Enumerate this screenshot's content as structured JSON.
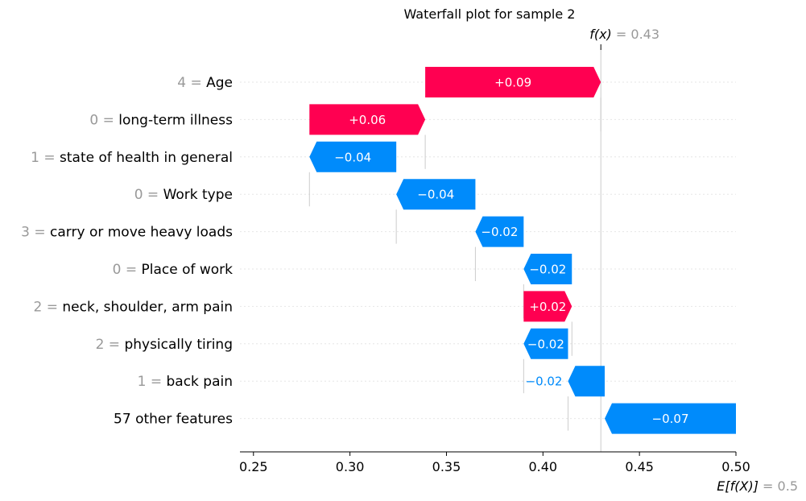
{
  "chart_data": {
    "type": "waterfall",
    "title": "Waterfall plot for sample 2",
    "fx_label": "f(x)",
    "fx_value": "0.43",
    "efx_label": "E[f(X)]",
    "efx_value": "0.5",
    "fx": 0.43,
    "base_value": 0.5,
    "xlim": [
      0.243,
      0.5
    ],
    "xticks": [
      0.25,
      0.3,
      0.35,
      0.4,
      0.45,
      0.5
    ],
    "xtick_labels": [
      "0.25",
      "0.30",
      "0.35",
      "0.40",
      "0.45",
      "0.50"
    ],
    "colors": {
      "positive": "#ff0051",
      "negative": "#008bfb",
      "feature_value": "#999999"
    },
    "features": [
      {
        "value": "4",
        "name": "Age",
        "start": 0.339,
        "end": 0.43,
        "label": "+0.09"
      },
      {
        "value": "0",
        "name": "long-term illness",
        "start": 0.279,
        "end": 0.339,
        "label": "+0.06"
      },
      {
        "value": "1",
        "name": "state of health in general",
        "start": 0.324,
        "end": 0.279,
        "label": "−0.04"
      },
      {
        "value": "0",
        "name": "Work type",
        "start": 0.365,
        "end": 0.324,
        "label": "−0.04"
      },
      {
        "value": "3",
        "name": "carry or move heavy loads",
        "start": 0.39,
        "end": 0.365,
        "label": "−0.02"
      },
      {
        "value": "0",
        "name": "Place of work",
        "start": 0.415,
        "end": 0.39,
        "label": "−0.02"
      },
      {
        "value": "2",
        "name": "neck, shoulder, arm pain",
        "start": 0.39,
        "end": 0.415,
        "label": "+0.02"
      },
      {
        "value": "2",
        "name": "physically tiring",
        "start": 0.413,
        "end": 0.39,
        "label": "−0.02"
      },
      {
        "value": "1",
        "name": "back pain",
        "start": 0.432,
        "end": 0.413,
        "label": "−0.02"
      },
      {
        "value": "",
        "name": "57 other features",
        "start": 0.5,
        "end": 0.432,
        "label": "−0.07"
      }
    ]
  }
}
